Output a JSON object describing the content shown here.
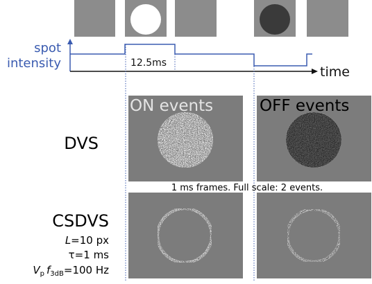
{
  "timing": {
    "ylabel_line1": "spot",
    "ylabel_line2": "intensity",
    "pulse_label": "12.5ms",
    "xlabel": "time"
  },
  "columns": {
    "on": "ON events",
    "off": "OFF events"
  },
  "rows": {
    "dvs": "DVS",
    "note": "1 ms frames. Full scale: 2 events.",
    "csdvs": "CSDVS"
  },
  "params": {
    "L_sym": "L",
    "L_val": "=10 px",
    "tau": "τ=1 ms",
    "V": "V",
    "V_sub": "p",
    "f": "f",
    "f_sub": "3dB",
    "f_val": "=100 Hz"
  }
}
